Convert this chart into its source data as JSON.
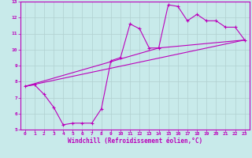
{
  "xlabel": "Windchill (Refroidissement éolien,°C)",
  "bg_color": "#c8eaea",
  "grid_color": "#b0d0d0",
  "line_color": "#bb00bb",
  "spine_color": "#9900aa",
  "xlim": [
    -0.5,
    23.5
  ],
  "ylim": [
    5,
    13
  ],
  "xticks": [
    0,
    1,
    2,
    3,
    4,
    5,
    6,
    7,
    8,
    9,
    10,
    11,
    12,
    13,
    14,
    15,
    16,
    17,
    18,
    19,
    20,
    21,
    22,
    23
  ],
  "yticks": [
    5,
    6,
    7,
    8,
    9,
    10,
    11,
    12,
    13
  ],
  "data_x": [
    0,
    1,
    2,
    3,
    4,
    5,
    6,
    7,
    8,
    9,
    10,
    11,
    12,
    13,
    14,
    15,
    16,
    17,
    18,
    19,
    20,
    21,
    22,
    23
  ],
  "data_y": [
    7.7,
    7.8,
    7.2,
    6.4,
    5.3,
    5.4,
    5.4,
    5.4,
    6.3,
    9.3,
    9.5,
    11.6,
    11.3,
    10.1,
    10.1,
    12.8,
    12.7,
    11.8,
    12.2,
    11.8,
    11.8,
    11.4,
    11.4,
    10.6
  ],
  "line1_x": [
    0,
    23
  ],
  "line1_y": [
    7.7,
    10.6
  ],
  "line2_x": [
    0,
    14,
    23
  ],
  "line2_y": [
    7.7,
    10.1,
    10.6
  ]
}
